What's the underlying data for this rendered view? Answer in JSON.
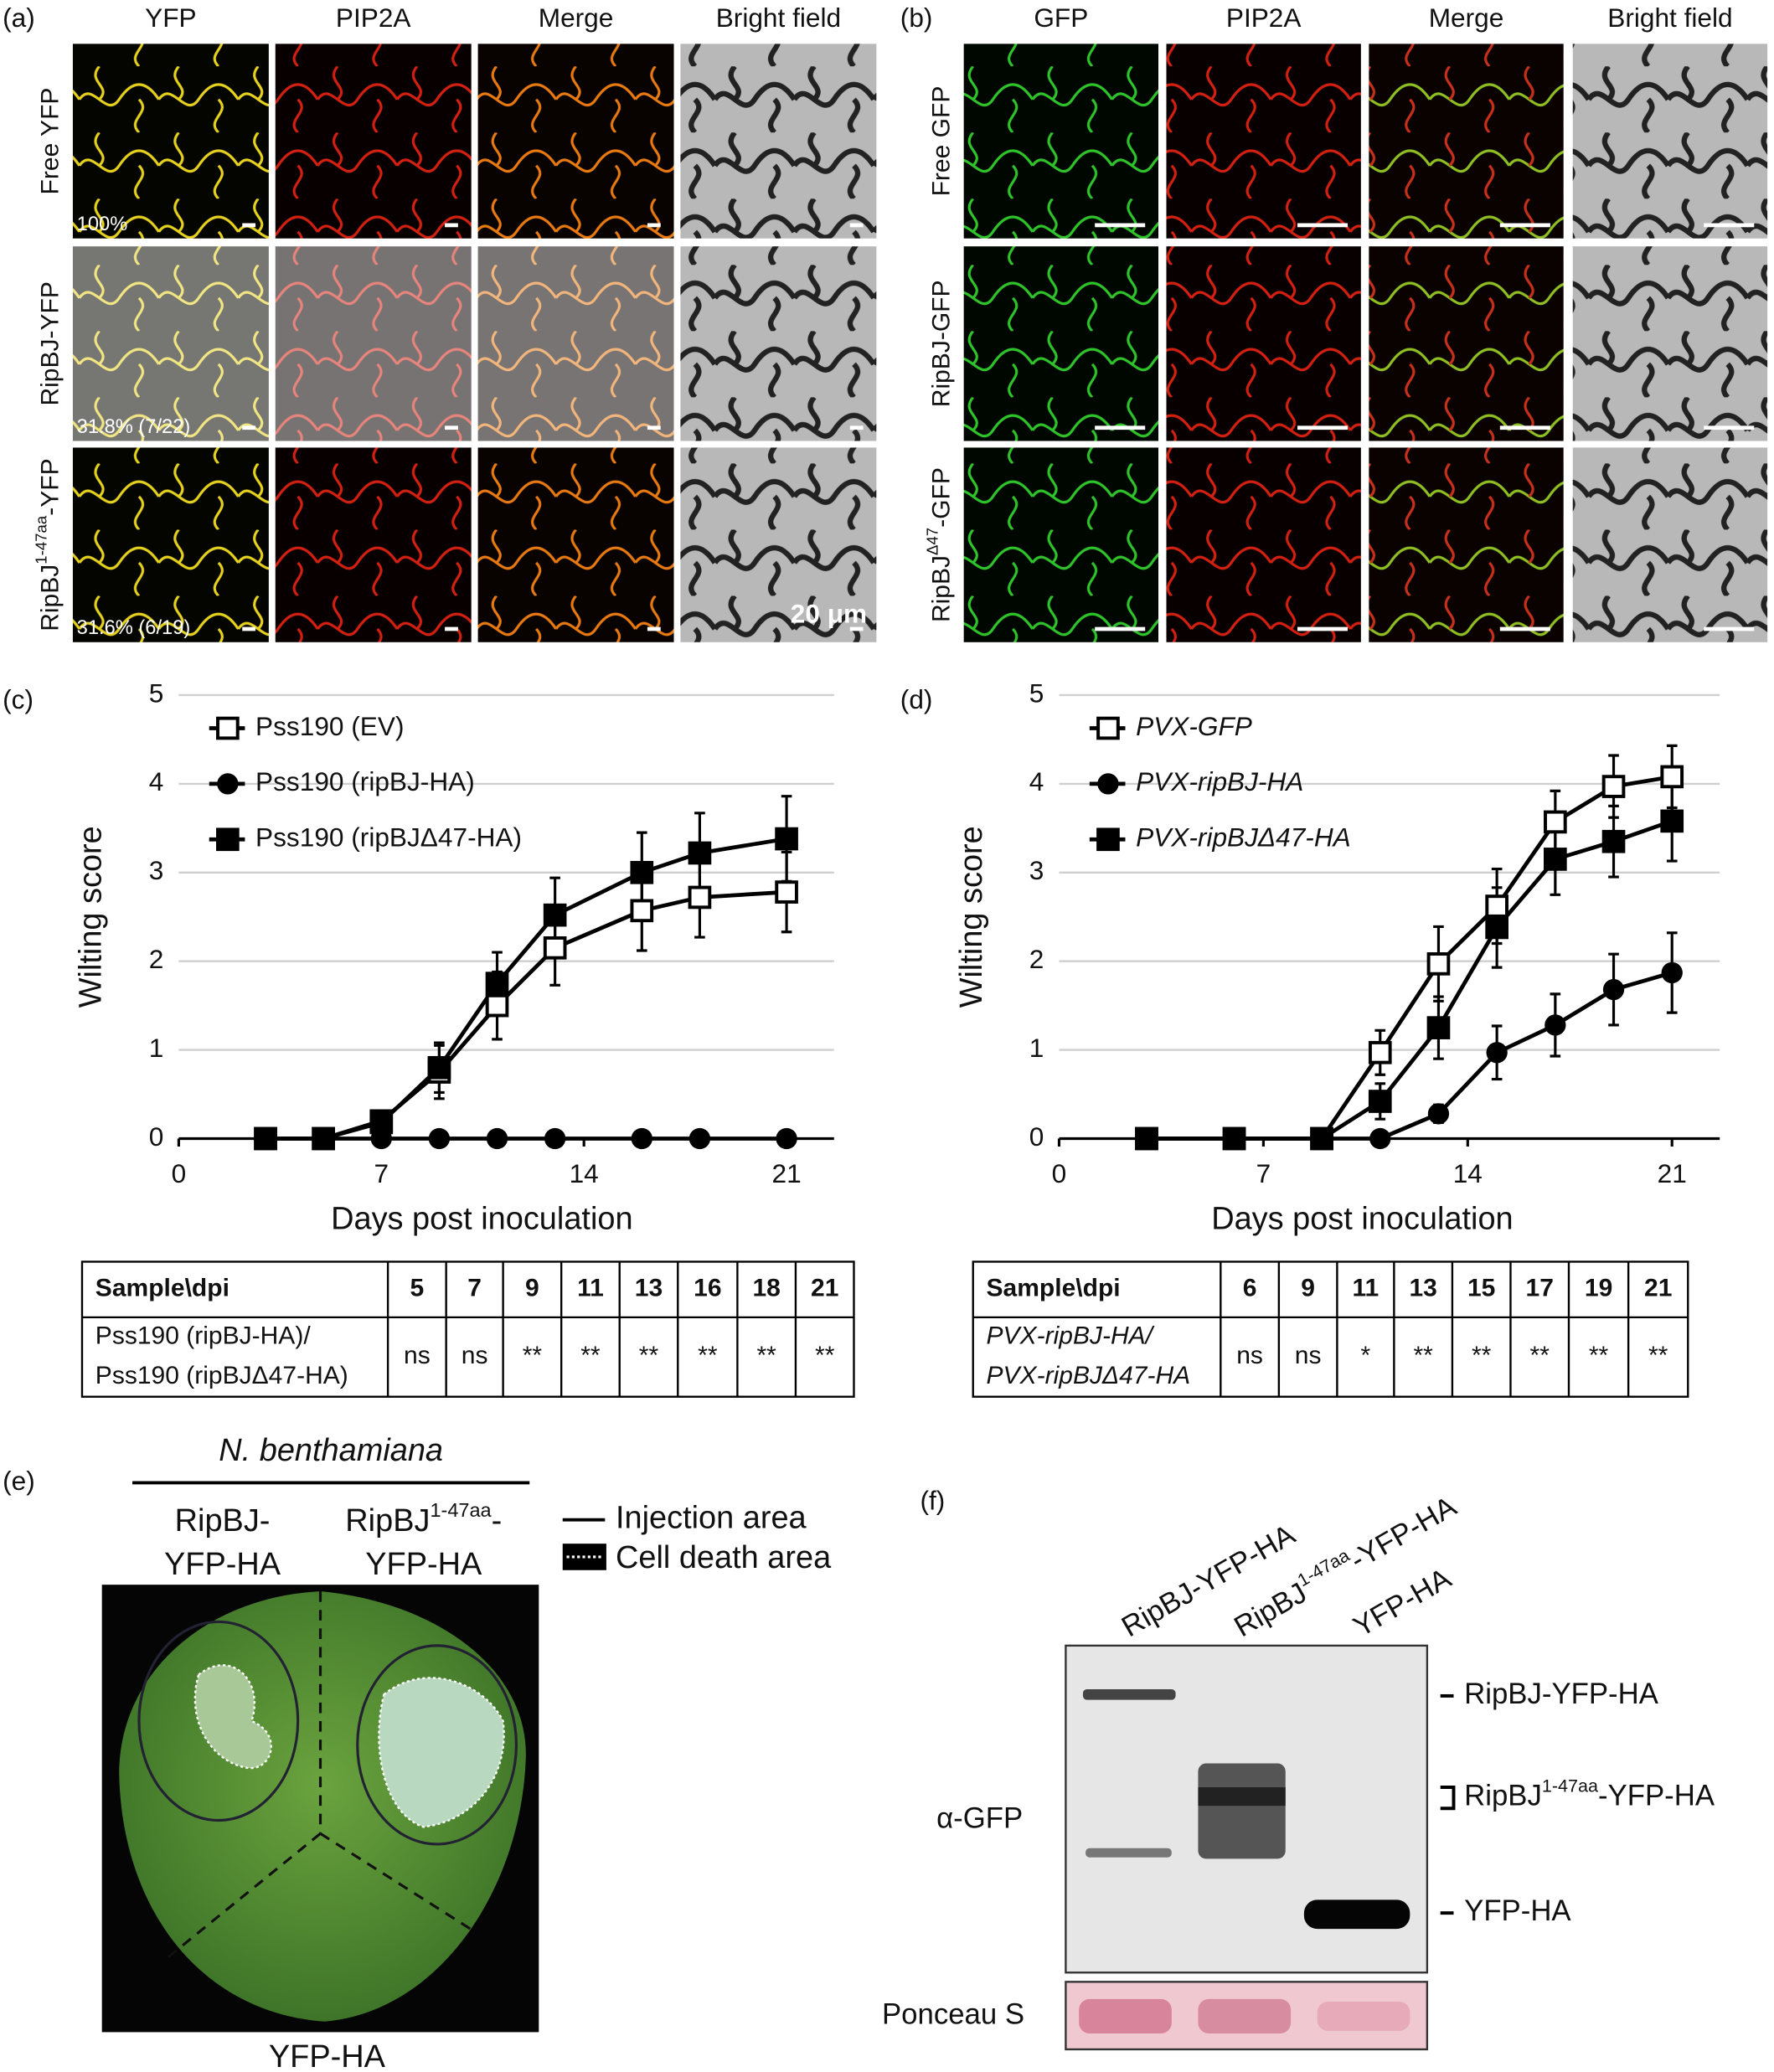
{
  "panel_a": {
    "label": "(a)",
    "columns": [
      "YFP",
      "PIP2A",
      "Merge",
      "Bright field"
    ],
    "rows": [
      [
        "Free YFP"
      ],
      [
        "RipBJ-YFP"
      ],
      [
        "RipBJ",
        "1-47aa",
        "-YFP"
      ]
    ],
    "percentages": [
      "100%",
      "31.8% (7/22)",
      "31.6% (6/19)"
    ],
    "scale_bar": "20 μm"
  },
  "panel_b": {
    "label": "(b)",
    "columns": [
      "GFP",
      "PIP2A",
      "Merge",
      "Bright field"
    ],
    "rows": [
      [
        "Free GFP"
      ],
      [
        "RipBJ-GFP"
      ],
      [
        "RipBJ",
        "Δ47",
        "-GFP"
      ]
    ]
  },
  "chart_data": [
    {
      "type": "line",
      "panel": "(c)",
      "x_label": "Days post inoculation",
      "y_label": "Wilting score",
      "x": [
        3,
        5,
        7,
        9,
        11,
        13,
        16,
        18,
        21
      ],
      "series": [
        {
          "name": "Pss190 (EV)",
          "color": "#000000",
          "marker": "square-open",
          "values": [
            0,
            0,
            0.2,
            0.75,
            1.5,
            2.15,
            2.57,
            2.72,
            2.78
          ],
          "errors": [
            null,
            null,
            0.05,
            0.3,
            0.38,
            0.42,
            0.45,
            0.45,
            0.45
          ]
        },
        {
          "name": "Pss190 (ripBJ-HA)",
          "color": "#000000",
          "marker": "circle",
          "values": [
            0,
            0,
            0,
            0,
            0,
            0,
            0,
            0,
            0
          ],
          "errors": [
            null,
            null,
            null,
            null,
            null,
            null,
            null,
            null,
            null
          ]
        },
        {
          "name": "Pss190 (ripBJΔ47-HA)",
          "color": "#000000",
          "marker": "square",
          "values": [
            0,
            0,
            0.18,
            0.8,
            1.75,
            2.52,
            3.0,
            3.22,
            3.38
          ],
          "errors": [
            null,
            null,
            0.05,
            0.28,
            0.35,
            0.42,
            0.45,
            0.45,
            0.48
          ]
        }
      ],
      "xlim": [
        0,
        22
      ],
      "xticks": [
        0,
        7,
        14,
        21
      ],
      "ylim": [
        0,
        5
      ],
      "yticks": [
        0,
        1,
        2,
        3,
        4,
        5
      ],
      "grid": true,
      "legend": "top-left",
      "legend_italic": false,
      "table": {
        "header": [
          "Sample\\dpi",
          "5",
          "7",
          "9",
          "11",
          "13",
          "16",
          "18",
          "21"
        ],
        "sample": [
          "Pss190 (ripBJ-HA)/",
          "Pss190 (ripBJΔ47-HA)"
        ],
        "values": [
          "ns",
          "ns",
          "**",
          "**",
          "**",
          "**",
          "**",
          "**"
        ],
        "sample_italic": false
      }
    },
    {
      "type": "line",
      "panel": "(d)",
      "x_label": "Days post inoculation",
      "y_label": "Wilting score",
      "x": [
        3,
        6,
        9,
        11,
        13,
        15,
        17,
        19,
        21
      ],
      "series": [
        {
          "name": "PVX-GFP",
          "color": "#000000",
          "marker": "square-open",
          "values": [
            0,
            0,
            0,
            0.97,
            1.97,
            2.62,
            3.57,
            3.97,
            4.08
          ],
          "errors": [
            null,
            null,
            null,
            0.25,
            0.42,
            0.42,
            0.35,
            0.35,
            0.35
          ]
        },
        {
          "name": "PVX-ripBJ-HA",
          "color": "#000000",
          "marker": "circle",
          "values": [
            0,
            0,
            0,
            0,
            0.28,
            0.97,
            1.28,
            1.68,
            1.87
          ],
          "errors": [
            null,
            null,
            null,
            null,
            0.1,
            0.3,
            0.35,
            0.4,
            0.45
          ]
        },
        {
          "name": "PVX-ripBJΔ47-HA",
          "color": "#000000",
          "marker": "square",
          "values": [
            0,
            0,
            0,
            0.42,
            1.25,
            2.38,
            3.15,
            3.35,
            3.58
          ],
          "errors": [
            null,
            null,
            null,
            0.2,
            0.35,
            0.45,
            0.4,
            0.4,
            0.45
          ]
        }
      ],
      "xlim": [
        0,
        22
      ],
      "xticks": [
        0,
        7,
        14,
        21
      ],
      "ylim": [
        0,
        5
      ],
      "yticks": [
        0,
        1,
        2,
        3,
        4,
        5
      ],
      "grid": true,
      "legend": "top-left",
      "legend_italic": true,
      "table": {
        "header": [
          "Sample\\dpi",
          "6",
          "9",
          "11",
          "13",
          "15",
          "17",
          "19",
          "21"
        ],
        "sample": [
          "PVX-ripBJ-HA/",
          "PVX-ripBJΔ47-HA"
        ],
        "values": [
          "ns",
          "ns",
          "*",
          "**",
          "**",
          "**",
          "**",
          "**"
        ],
        "sample_italic": true
      }
    }
  ],
  "panel_e": {
    "label": "(e)",
    "species": "N. benthamiana",
    "left": [
      [
        "RipBJ-"
      ],
      [
        "YFP-HA"
      ]
    ],
    "right": [
      [
        "RipBJ",
        "1-47aa",
        "-"
      ],
      [
        "YFP-HA"
      ]
    ],
    "legend": [
      "Injection area",
      "Cell death area"
    ],
    "bottom": "YFP-HA"
  },
  "panel_f": {
    "label": "(f)",
    "lanes": [
      [
        "RipBJ-YFP-HA"
      ],
      [
        "RipBJ",
        "1-47aa",
        "-YFP-HA"
      ],
      [
        "YFP-HA"
      ]
    ],
    "antibody": "α-GFP",
    "bands": [
      [
        "RipBJ-YFP-HA"
      ],
      [
        "RipBJ",
        "1-47aa",
        "-YFP-HA"
      ],
      [
        "YFP-HA"
      ]
    ],
    "loading": "Ponceau S"
  }
}
